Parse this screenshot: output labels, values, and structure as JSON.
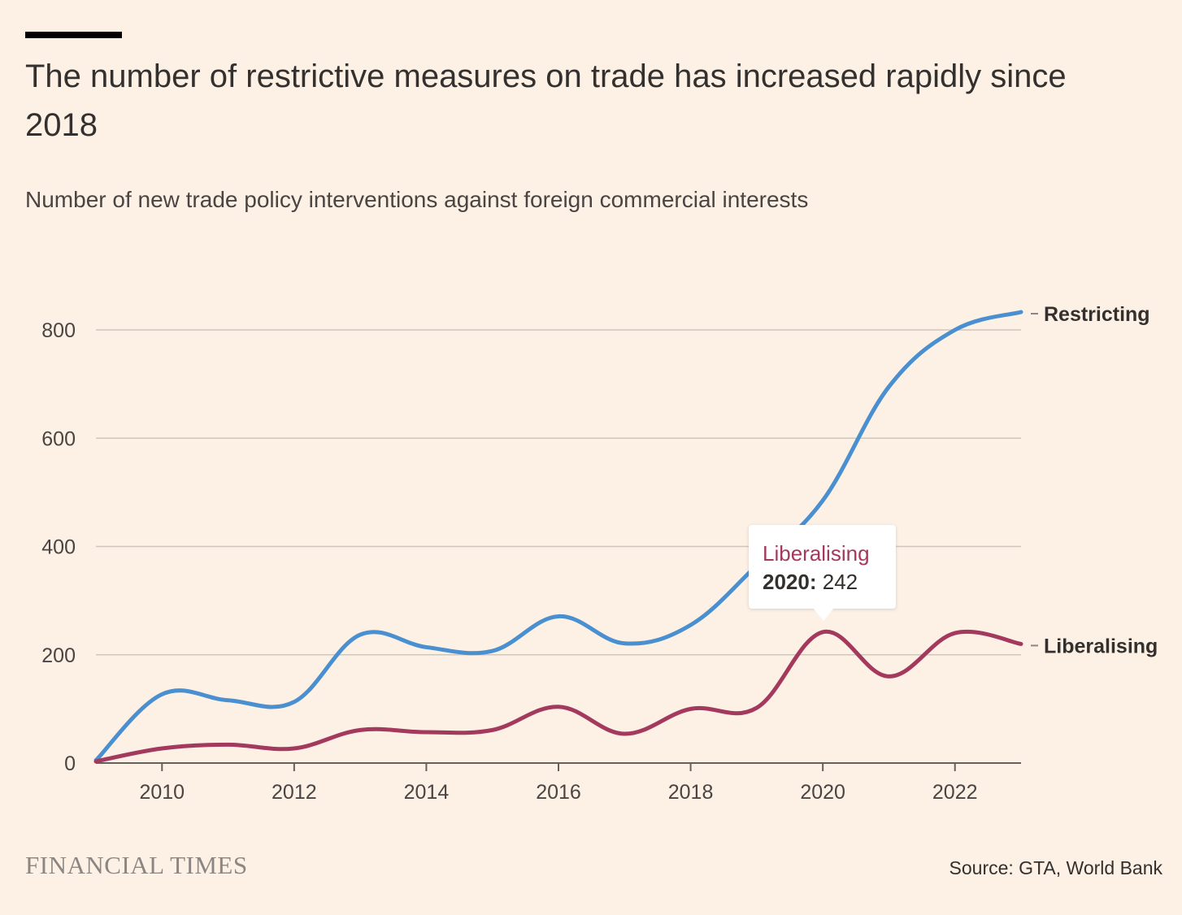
{
  "header": {
    "title": "The number of restrictive measures on trade has increased rapidly since 2018",
    "subtitle": "Number of new trade policy interventions against foreign commercial interests"
  },
  "footer": {
    "brand": "FINANCIAL TIMES",
    "source": "Source: GTA, World Bank"
  },
  "tooltip": {
    "series": "Liberalising",
    "year": "2020:",
    "value": "242"
  },
  "colors": {
    "restricting": "#4A8FD0",
    "liberalising": "#A33A5D",
    "gridline": "#CFC6BD",
    "axis": "#66605C"
  },
  "chart_data": {
    "type": "line",
    "title": "The number of restrictive measures on trade has increased rapidly since 2018",
    "subtitle": "Number of new trade policy interventions against foreign commercial interests",
    "xlabel": "",
    "ylabel": "",
    "x": [
      2009,
      2010,
      2011,
      2012,
      2013,
      2014,
      2015,
      2016,
      2017,
      2018,
      2019,
      2020,
      2021,
      2022,
      2023
    ],
    "xticks": [
      "2010",
      "2012",
      "2014",
      "2016",
      "2018",
      "2020",
      "2022"
    ],
    "yticks": [
      "0",
      "200",
      "400",
      "600",
      "800"
    ],
    "ylim": [
      0,
      800
    ],
    "xlim": [
      2009,
      2023
    ],
    "grid": true,
    "series": [
      {
        "name": "Restricting",
        "values": [
          5,
          127,
          116,
          113,
          237,
          214,
          207,
          271,
          221,
          255,
          365,
          485,
          695,
          800,
          833
        ]
      },
      {
        "name": "Liberalising",
        "values": [
          3,
          27,
          34,
          27,
          61,
          57,
          61,
          104,
          54,
          100,
          102,
          242,
          160,
          240,
          220
        ]
      }
    ]
  }
}
